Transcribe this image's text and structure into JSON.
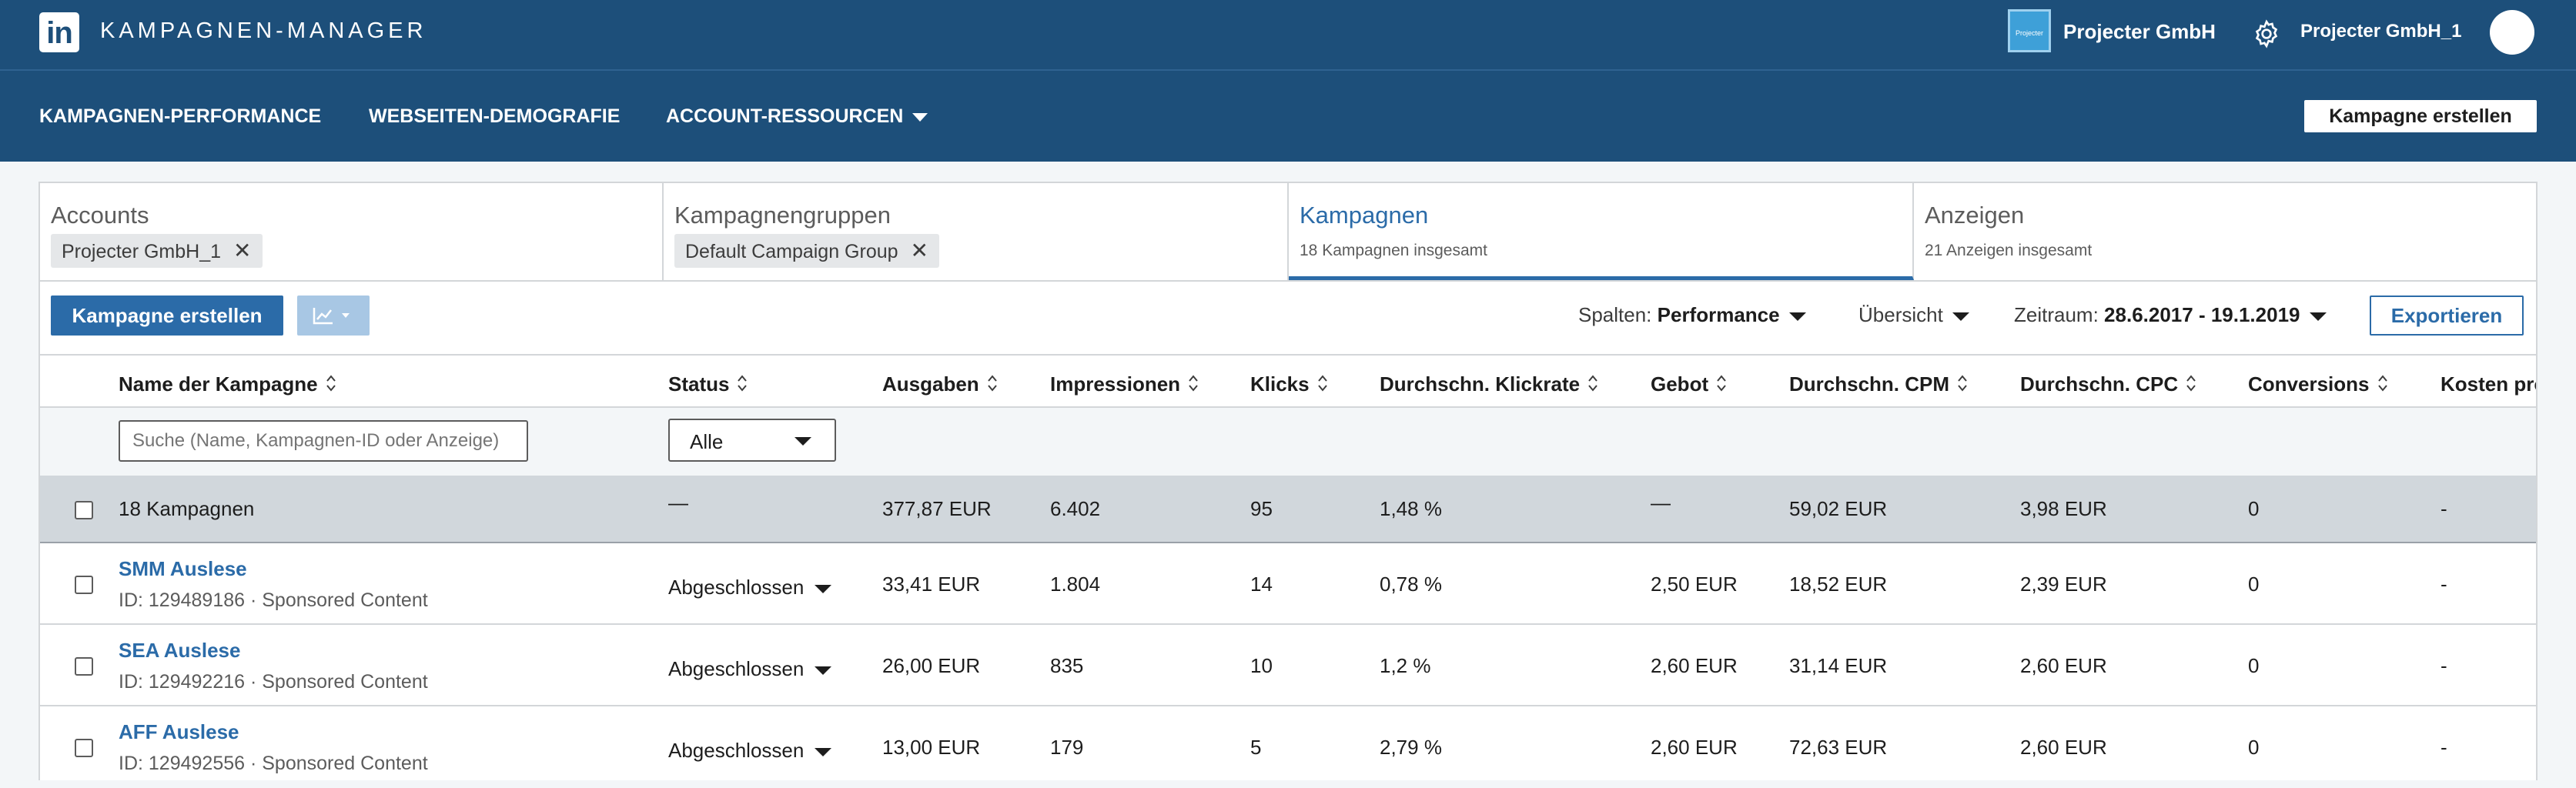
{
  "topbar": {
    "logo_text": "in",
    "app_title": "KAMPAGNEN-MANAGER",
    "company_logo_text": "Projecter",
    "company_name": "Projecter GmbH",
    "account_name": "Projecter GmbH_1"
  },
  "nav": {
    "items": [
      "KAMPAGNEN-PERFORMANCE",
      "WEBSEITEN-DEMOGRAFIE",
      "ACCOUNT-RESSOURCEN"
    ],
    "create_label": "Kampagne erstellen"
  },
  "tabs": [
    {
      "title": "Accounts",
      "pill": "Projecter GmbH_1"
    },
    {
      "title": "Kampagnengruppen",
      "pill": "Default Campaign Group"
    },
    {
      "title": "Kampagnen",
      "subtitle": "18 Kampagnen insgesamt"
    },
    {
      "title": "Anzeigen",
      "subtitle": "21 Anzeigen insgesamt"
    }
  ],
  "toolbar": {
    "create_label": "Kampagne erstellen",
    "columns_label": "Spalten:",
    "columns_value": "Performance",
    "view_label": "Übersicht",
    "range_label": "Zeitraum:",
    "range_value": "28.6.2017 - 19.1.2019",
    "export_label": "Exportieren"
  },
  "table": {
    "headers": [
      "Name der Kampagne",
      "Status",
      "Ausgaben",
      "Impressionen",
      "Klicks",
      "Durchschn. Klickrate",
      "Gebot",
      "Durchschn. CPM",
      "Durchschn. CPC",
      "Conversions",
      "Kosten pro"
    ],
    "search_placeholder": "Suche (Name, Kampagnen-ID oder Anzeige)",
    "status_filter": "Alle",
    "total": {
      "name": "18 Kampagnen",
      "status": "—",
      "spend": "377,87 EUR",
      "impressions": "6.402",
      "clicks": "95",
      "ctr": "1,48 %",
      "bid": "—",
      "cpm": "59,02 EUR",
      "cpc": "3,98 EUR",
      "conversions": "0",
      "cost_per": "-"
    },
    "rows": [
      {
        "name": "SMM Auslese",
        "meta": "ID: 129489186 · Sponsored Content",
        "status": "Abgeschlossen",
        "spend": "33,41 EUR",
        "impressions": "1.804",
        "clicks": "14",
        "ctr": "0,78 %",
        "bid": "2,50 EUR",
        "cpm": "18,52 EUR",
        "cpc": "2,39 EUR",
        "conversions": "0",
        "cost_per": "-"
      },
      {
        "name": "SEA Auslese",
        "meta": "ID: 129492216 · Sponsored Content",
        "status": "Abgeschlossen",
        "spend": "26,00 EUR",
        "impressions": "835",
        "clicks": "10",
        "ctr": "1,2 %",
        "bid": "2,60 EUR",
        "cpm": "31,14 EUR",
        "cpc": "2,60 EUR",
        "conversions": "0",
        "cost_per": "-"
      },
      {
        "name": "AFF Auslese",
        "meta": "ID: 129492556 · Sponsored Content",
        "status": "Abgeschlossen",
        "spend": "13,00 EUR",
        "impressions": "179",
        "clicks": "5",
        "ctr": "2,79 %",
        "bid": "2,60 EUR",
        "cpm": "72,63 EUR",
        "cpc": "2,60 EUR",
        "conversions": "0",
        "cost_per": "-"
      }
    ]
  },
  "colors": {
    "brand": "#1d4f7a",
    "accent": "#2b6ba8",
    "total_row": "#d1d7dc"
  }
}
